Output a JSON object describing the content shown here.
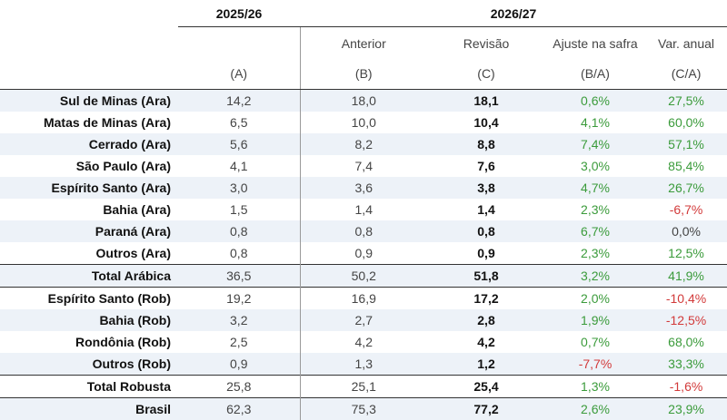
{
  "table": {
    "groups": [
      "2025/26",
      "2026/27"
    ],
    "columns": [
      {
        "code": "(A)"
      },
      {
        "title": "Anterior",
        "code": "(B)"
      },
      {
        "title": "Revisão",
        "code": "(C)"
      },
      {
        "title": "Ajuste na safra",
        "code": "(B/A)"
      },
      {
        "title": "Var. anual",
        "code": "(C/A)"
      }
    ],
    "rows": [
      [
        "Sul de Minas (Ara)",
        "14,2",
        "18,0",
        "18,1",
        "0,6%",
        "27,5%"
      ],
      [
        "Matas de Minas (Ara)",
        "6,5",
        "10,0",
        "10,4",
        "4,1%",
        "60,0%"
      ],
      [
        "Cerrado (Ara)",
        "5,6",
        "8,2",
        "8,8",
        "7,4%",
        "57,1%"
      ],
      [
        "São Paulo (Ara)",
        "4,1",
        "7,4",
        "7,6",
        "3,0%",
        "85,4%"
      ],
      [
        "Espírito Santo (Ara)",
        "3,0",
        "3,6",
        "3,8",
        "4,7%",
        "26,7%"
      ],
      [
        "Bahia (Ara)",
        "1,5",
        "1,4",
        "1,4",
        "2,3%",
        "-6,7%"
      ],
      [
        "Paraná (Ara)",
        "0,8",
        "0,8",
        "0,8",
        "6,7%",
        "0,0%"
      ],
      [
        "Outros (Ara)",
        "0,8",
        "0,9",
        "0,9",
        "2,3%",
        "12,5%"
      ],
      [
        "Total Arábica",
        "36,5",
        "50,2",
        "51,8",
        "3,2%",
        "41,9%"
      ],
      [
        "Espírito Santo (Rob)",
        "19,2",
        "16,9",
        "17,2",
        "2,0%",
        "-10,4%"
      ],
      [
        "Bahia (Rob)",
        "3,2",
        "2,7",
        "2,8",
        "1,9%",
        "-12,5%"
      ],
      [
        "Rondônia (Rob)",
        "2,5",
        "4,2",
        "4,2",
        "0,7%",
        "68,0%"
      ],
      [
        "Outros (Rob)",
        "0,9",
        "1,3",
        "1,2",
        "-7,7%",
        "33,3%"
      ],
      [
        "Total Robusta",
        "25,8",
        "25,1",
        "25,4",
        "1,3%",
        "-1,6%"
      ],
      [
        "Brasil",
        "62,3",
        "75,3",
        "77,2",
        "2,6%",
        "23,9%"
      ]
    ],
    "total_rows": [
      8,
      13,
      14
    ]
  }
}
